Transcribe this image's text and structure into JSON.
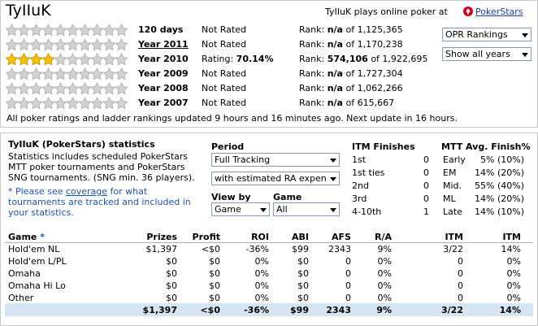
{
  "header": {
    "title": "TyIIuK",
    "plays_text": "TyIIuK plays online poker at",
    "site": "PokerStars"
  },
  "rows": [
    {
      "stars": 0,
      "period": "120 days",
      "link": false,
      "rating": "Not Rated",
      "rank_label": "Rank:",
      "rank": "n/a",
      "total": "of 1,125,365"
    },
    {
      "stars": 0,
      "period": "Year 2011",
      "link": true,
      "rating": "Not Rated",
      "rank_label": "Rank:",
      "rank": "n/a",
      "total": "of 1,170,238"
    },
    {
      "stars": 4,
      "period": "Year 2010",
      "link": false,
      "rating": "Rating:",
      "rating_value": "70.14%",
      "rank_label": "Rank:",
      "rank": "574,106",
      "total": "of 1,922,695"
    },
    {
      "stars": 0,
      "period": "Year 2009",
      "link": false,
      "rating": "Not Rated",
      "rank_label": "Rank:",
      "rank": "n/a",
      "total": "of 1,727,304"
    },
    {
      "stars": 0,
      "period": "Year 2008",
      "link": false,
      "rating": "Not Rated",
      "rank_label": "Rank:",
      "rank": "n/a",
      "total": "of 1,062,266"
    },
    {
      "stars": 0,
      "period": "Year 2007",
      "link": false,
      "rating": "Not Rated",
      "rank_label": "Rank:",
      "rank": "n/a",
      "total": "of 615,667"
    }
  ],
  "selects": {
    "rankings": "OPR Rankings",
    "years": "Show all years"
  },
  "footer": "All poker ratings and ladder rankings updated 9 hours and 16 minutes ago. Next update in 16 hours.",
  "stats": {
    "title": "TyIIuK (PokerStars) statistics",
    "desc": [
      "Statistics includes scheduled PokerStars",
      "MTT poker tournaments and PokerStars",
      "SNG tournaments. (SNG min. 36 players)."
    ],
    "note_before": "* Please see",
    "note_link": "coverage",
    "note_after": "for what tournaments are tracked and included in your statistics.",
    "period_label": "Period",
    "period": "Full Tracking",
    "expense": "with estimated RA expen",
    "view_label": "View by",
    "view": "Game",
    "game_label": "Game",
    "game": "All"
  },
  "itm": {
    "title": "ITM Finishes",
    "rows": [
      [
        "1st",
        "0"
      ],
      [
        "1st ties",
        "0"
      ],
      [
        "2nd",
        "0"
      ],
      [
        "3rd",
        "0"
      ],
      [
        "4-10th",
        "1"
      ]
    ]
  },
  "mtt": {
    "title": "MTT Avg. Finish%",
    "rows": [
      [
        "Early",
        "5% (10%)"
      ],
      [
        "EM",
        "14% (20%)"
      ],
      [
        "Mid.",
        "55% (40%)"
      ],
      [
        "ML",
        "14% (20%)"
      ],
      [
        "Late",
        "14% (10%)"
      ]
    ]
  },
  "table": {
    "game_header": "Game",
    "star": "*",
    "headers": [
      "Prizes",
      "Profit",
      "ROI",
      "ABI",
      "AFS",
      "R/A",
      "ITM",
      "ITM"
    ],
    "rows": [
      [
        "Hold'em NL",
        "$1,397",
        "<$0",
        "-36%",
        "$99",
        "2343",
        "9%",
        "3/22",
        "14%"
      ],
      [
        "Hold'em L/PL",
        "$0",
        "$0",
        "0%",
        "$0",
        "0",
        "0%",
        "0",
        "0%"
      ],
      [
        "Omaha",
        "$0",
        "$0",
        "0%",
        "$0",
        "0",
        "0%",
        "0",
        "0%"
      ],
      [
        "Omaha Hi Lo",
        "$0",
        "$0",
        "0%",
        "$0",
        "0",
        "0%",
        "0",
        "0%"
      ],
      [
        "Other",
        "$0",
        "$0",
        "0%",
        "$0",
        "0",
        "0%",
        "0",
        "0%"
      ]
    ],
    "totals": [
      "$1,397",
      "<$0",
      "-36%",
      "$99",
      "2343",
      "9%",
      "3/22",
      "14%"
    ]
  }
}
